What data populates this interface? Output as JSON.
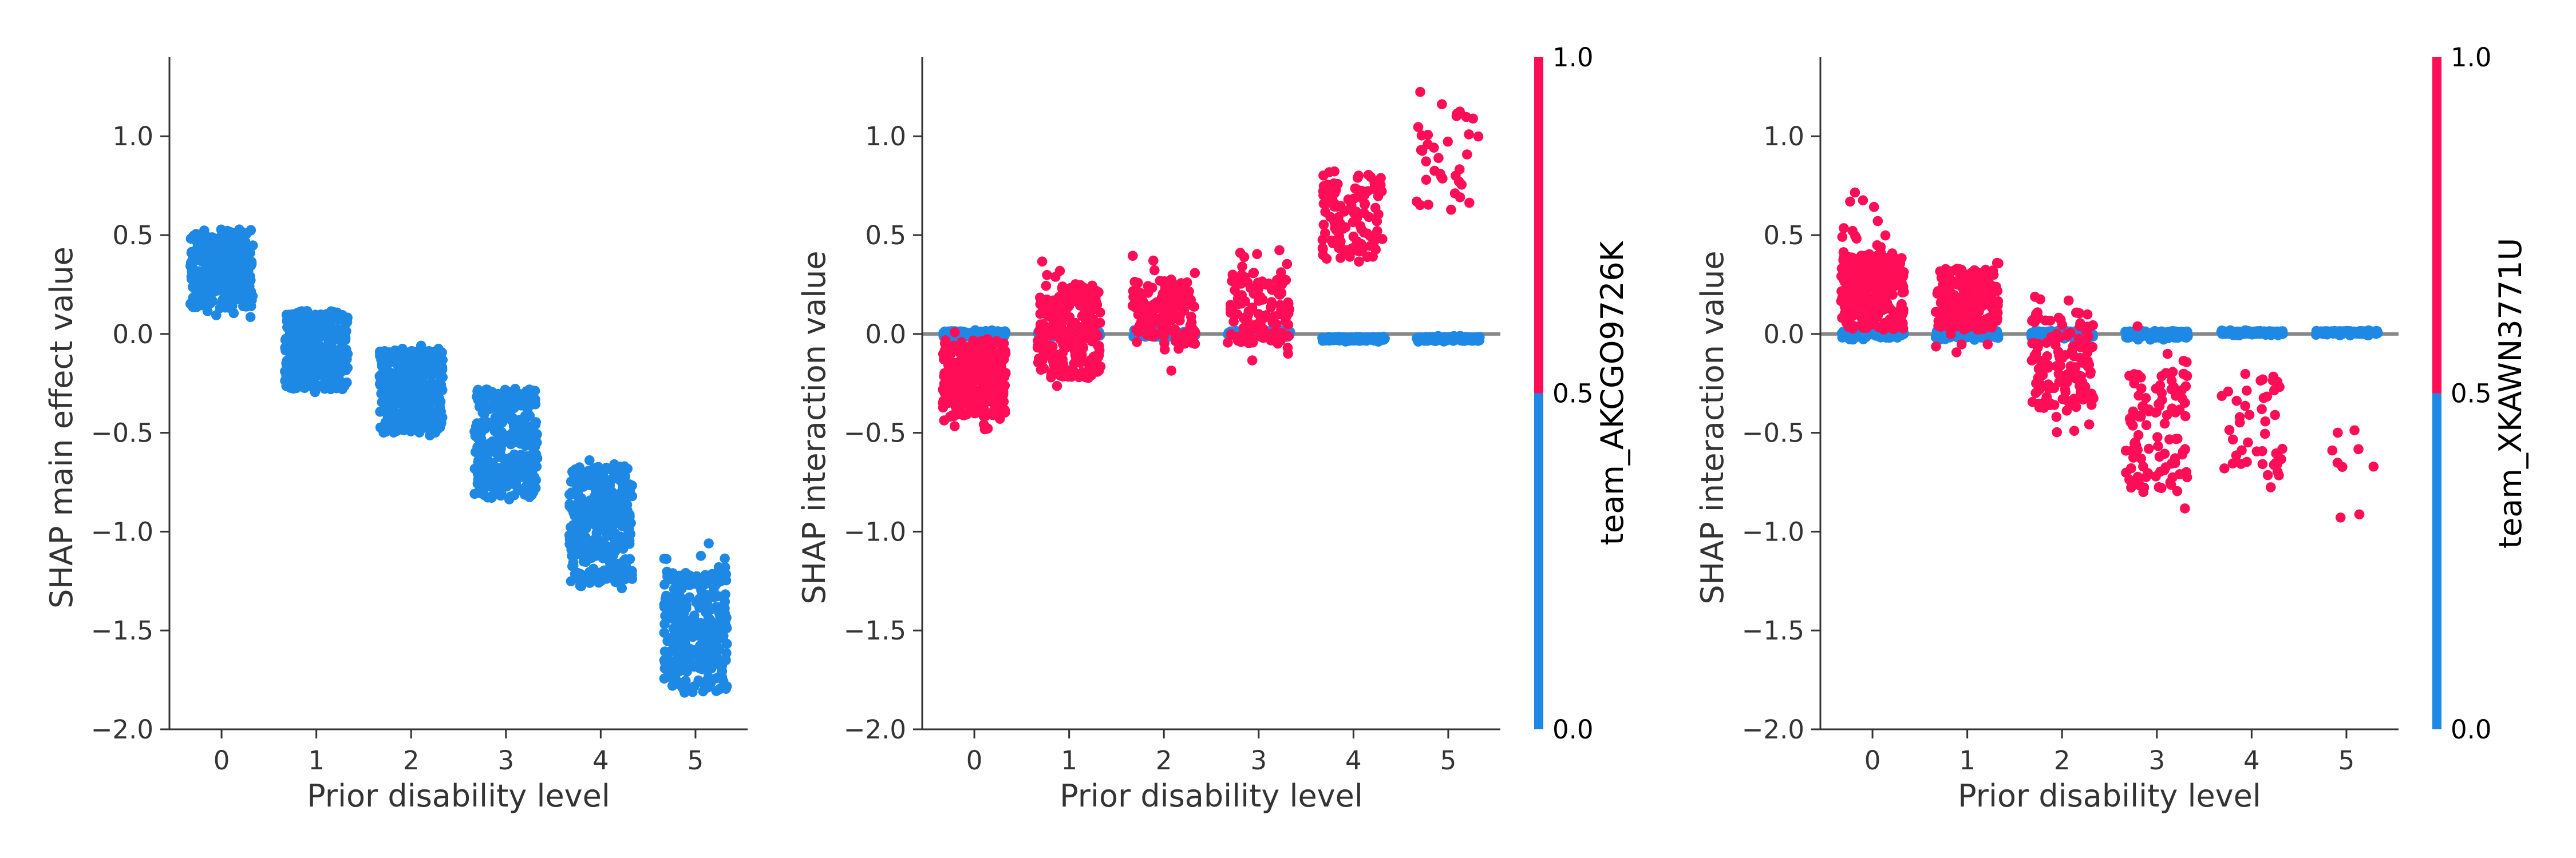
{
  "colors": {
    "low": "#1e88e5",
    "high": "#ff0d57",
    "zero_line": "#888888",
    "axis": "#333333",
    "background": "#ffffff"
  },
  "chart_data": [
    {
      "type": "scatter",
      "title": "",
      "xlabel": "Prior disability level",
      "ylabel": "SHAP main effect value",
      "xlim": [
        -0.55,
        5.55
      ],
      "ylim": [
        -2.0,
        1.4
      ],
      "x_ticks": [
        "0",
        "1",
        "2",
        "3",
        "4",
        "5"
      ],
      "y_ticks": [
        "1.0",
        "0.5",
        "0.0",
        "−0.5",
        "−1.0",
        "−1.5",
        "−2.0"
      ],
      "zero_line": false,
      "colorbar": null,
      "series": [
        {
          "color_value": "low",
          "groups": [
            {
              "x": 0,
              "n": 330,
              "y_min": 0.08,
              "y_max": 0.54,
              "y_center": 0.34,
              "dense_min": 0.13,
              "dense_max": 0.53
            },
            {
              "x": 1,
              "n": 330,
              "y_min": -0.31,
              "y_max": 0.13,
              "y_center": -0.06,
              "dense_min": -0.28,
              "dense_max": 0.12
            },
            {
              "x": 2,
              "n": 330,
              "y_min": -0.52,
              "y_max": -0.03,
              "y_center": -0.29,
              "dense_min": -0.5,
              "dense_max": -0.08
            },
            {
              "x": 3,
              "n": 330,
              "y_min": -0.88,
              "y_max": -0.17,
              "y_center": -0.56,
              "dense_min": -0.83,
              "dense_max": -0.28
            },
            {
              "x": 4,
              "n": 330,
              "y_min": -1.29,
              "y_max": -0.63,
              "y_center": -0.97,
              "dense_min": -1.26,
              "dense_max": -0.66
            },
            {
              "x": 5,
              "n": 330,
              "y_min": -1.86,
              "y_max": -0.97,
              "y_center": -1.48,
              "dense_min": -1.81,
              "dense_max": -1.2
            }
          ]
        }
      ]
    },
    {
      "type": "scatter",
      "title": "",
      "xlabel": "Prior disability level",
      "ylabel": "SHAP interaction value",
      "xlim": [
        -0.55,
        5.55
      ],
      "ylim": [
        -2.0,
        1.4
      ],
      "x_ticks": [
        "0",
        "1",
        "2",
        "3",
        "4",
        "5"
      ],
      "y_ticks": [
        "1.0",
        "0.5",
        "0.0",
        "−0.5",
        "−1.0",
        "−1.5",
        "−2.0"
      ],
      "zero_line": true,
      "colorbar": {
        "label": "team_AKCGO9726K",
        "ticks": [
          "1.0",
          "0.5",
          "0.0"
        ]
      },
      "series": [
        {
          "color_value": "low",
          "groups": [
            {
              "x": 0,
              "n": 150,
              "y_min": -0.02,
              "y_max": 0.02,
              "y_center": 0.0,
              "dense_min": -0.015,
              "dense_max": 0.015
            },
            {
              "x": 1,
              "n": 150,
              "y_min": -0.02,
              "y_max": 0.02,
              "y_center": 0.0,
              "dense_min": -0.015,
              "dense_max": 0.015
            },
            {
              "x": 2,
              "n": 150,
              "y_min": -0.02,
              "y_max": 0.02,
              "y_center": 0.0,
              "dense_min": -0.015,
              "dense_max": 0.015
            },
            {
              "x": 3,
              "n": 150,
              "y_min": -0.02,
              "y_max": 0.02,
              "y_center": 0.0,
              "dense_min": -0.015,
              "dense_max": 0.015
            },
            {
              "x": 4,
              "n": 150,
              "y_min": -0.04,
              "y_max": -0.01,
              "y_center": -0.025,
              "dense_min": -0.035,
              "dense_max": -0.015
            },
            {
              "x": 5,
              "n": 150,
              "y_min": -0.04,
              "y_max": -0.01,
              "y_center": -0.025,
              "dense_min": -0.035,
              "dense_max": -0.015
            }
          ]
        },
        {
          "color_value": "high",
          "groups": [
            {
              "x": 0,
              "n": 320,
              "y_min": -0.49,
              "y_max": 0.02,
              "y_center": -0.23,
              "dense_min": -0.42,
              "dense_max": -0.03
            },
            {
              "x": 1,
              "n": 240,
              "y_min": -0.3,
              "y_max": 0.51,
              "y_center": -0.02,
              "dense_min": -0.22,
              "dense_max": 0.25
            },
            {
              "x": 2,
              "n": 140,
              "y_min": -0.19,
              "y_max": 0.41,
              "y_center": 0.1,
              "dense_min": -0.05,
              "dense_max": 0.27
            },
            {
              "x": 3,
              "n": 130,
              "y_min": -0.19,
              "y_max": 0.43,
              "y_center": 0.12,
              "dense_min": -0.05,
              "dense_max": 0.32
            },
            {
              "x": 4,
              "n": 110,
              "y_min": 0.12,
              "y_max": 0.85,
              "y_center": 0.61,
              "dense_min": 0.38,
              "dense_max": 0.82
            },
            {
              "x": 5,
              "n": 36,
              "y_min": 0.58,
              "y_max": 1.25,
              "y_center": 0.92,
              "dense_min": 0.62,
              "dense_max": 1.18
            }
          ]
        }
      ]
    },
    {
      "type": "scatter",
      "title": "",
      "xlabel": "Prior disability level",
      "ylabel": "SHAP interaction value",
      "xlim": [
        -0.55,
        5.55
      ],
      "ylim": [
        -2.0,
        1.4
      ],
      "x_ticks": [
        "0",
        "1",
        "2",
        "3",
        "4",
        "5"
      ],
      "y_ticks": [
        "1.0",
        "0.5",
        "0.0",
        "−0.5",
        "−1.0",
        "−1.5",
        "−2.0"
      ],
      "zero_line": true,
      "colorbar": {
        "label": "team_XKAWN3771U",
        "ticks": [
          "1.0",
          "0.5",
          "0.0"
        ]
      },
      "series": [
        {
          "color_value": "low",
          "groups": [
            {
              "x": 0,
              "n": 150,
              "y_min": -0.03,
              "y_max": 0.02,
              "y_center": 0.0,
              "dense_min": -0.02,
              "dense_max": 0.015
            },
            {
              "x": 1,
              "n": 150,
              "y_min": -0.03,
              "y_max": 0.02,
              "y_center": 0.0,
              "dense_min": -0.02,
              "dense_max": 0.015
            },
            {
              "x": 2,
              "n": 150,
              "y_min": -0.03,
              "y_max": 0.02,
              "y_center": 0.0,
              "dense_min": -0.02,
              "dense_max": 0.015
            },
            {
              "x": 3,
              "n": 150,
              "y_min": -0.03,
              "y_max": 0.02,
              "y_center": 0.0,
              "dense_min": -0.02,
              "dense_max": 0.015
            },
            {
              "x": 4,
              "n": 150,
              "y_min": -0.01,
              "y_max": 0.02,
              "y_center": 0.005,
              "dense_min": 0.0,
              "dense_max": 0.015
            },
            {
              "x": 5,
              "n": 150,
              "y_min": -0.01,
              "y_max": 0.02,
              "y_center": 0.005,
              "dense_min": 0.0,
              "dense_max": 0.015
            }
          ]
        },
        {
          "color_value": "high",
          "groups": [
            {
              "x": 0,
              "n": 300,
              "y_min": -0.04,
              "y_max": 0.72,
              "y_center": 0.23,
              "dense_min": 0.02,
              "dense_max": 0.42
            },
            {
              "x": 1,
              "n": 200,
              "y_min": -0.12,
              "y_max": 0.36,
              "y_center": 0.15,
              "dense_min": 0.02,
              "dense_max": 0.33
            },
            {
              "x": 2,
              "n": 140,
              "y_min": -0.5,
              "y_max": 0.31,
              "y_center": -0.12,
              "dense_min": -0.38,
              "dense_max": 0.12
            },
            {
              "x": 3,
              "n": 110,
              "y_min": -0.97,
              "y_max": 0.1,
              "y_center": -0.5,
              "dense_min": -0.8,
              "dense_max": -0.18
            },
            {
              "x": 4,
              "n": 45,
              "y_min": -0.8,
              "y_max": 0.02,
              "y_center": -0.5,
              "dense_min": -0.72,
              "dense_max": -0.2
            },
            {
              "x": 5,
              "n": 9,
              "y_min": -0.97,
              "y_max": -0.45,
              "y_center": -0.72,
              "dense_min": -0.95,
              "dense_max": -0.48
            }
          ]
        }
      ]
    }
  ]
}
